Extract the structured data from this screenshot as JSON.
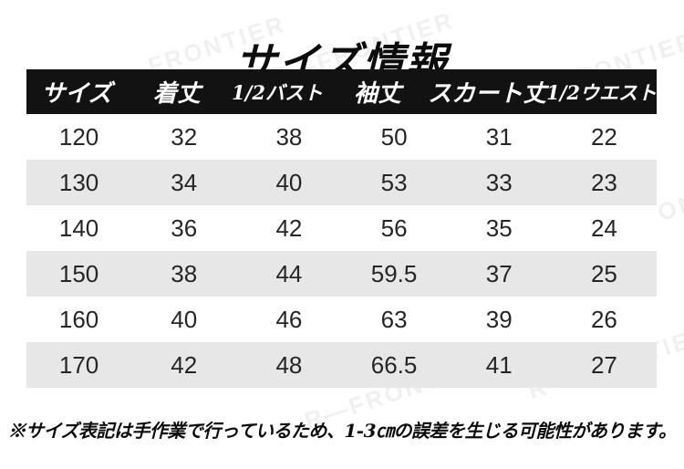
{
  "title": "サイズ情報",
  "table": {
    "headers": [
      "サイズ",
      "着丈",
      "1/2バスト",
      "袖丈",
      "スカート丈",
      "1/2ウエスト"
    ],
    "rows": [
      [
        "120",
        "32",
        "38",
        "50",
        "31",
        "22"
      ],
      [
        "130",
        "34",
        "40",
        "53",
        "33",
        "23"
      ],
      [
        "140",
        "36",
        "42",
        "56",
        "35",
        "24"
      ],
      [
        "150",
        "38",
        "44",
        "59.5",
        "37",
        "25"
      ],
      [
        "160",
        "40",
        "46",
        "63",
        "39",
        "26"
      ],
      [
        "170",
        "42",
        "48",
        "66.5",
        "41",
        "27"
      ]
    ]
  },
  "footnote": "※サイズ表記は手作業で行っているため、1-3㎝の誤差を生じる可能性があります。",
  "watermark_text": "R—FRONTIER",
  "colors": {
    "header_bg": "#121212",
    "header_text": "#ffffff",
    "alt_row_bg": "#e8e7e7",
    "body_text": "#262626",
    "title_text": "#0d0d0d"
  }
}
